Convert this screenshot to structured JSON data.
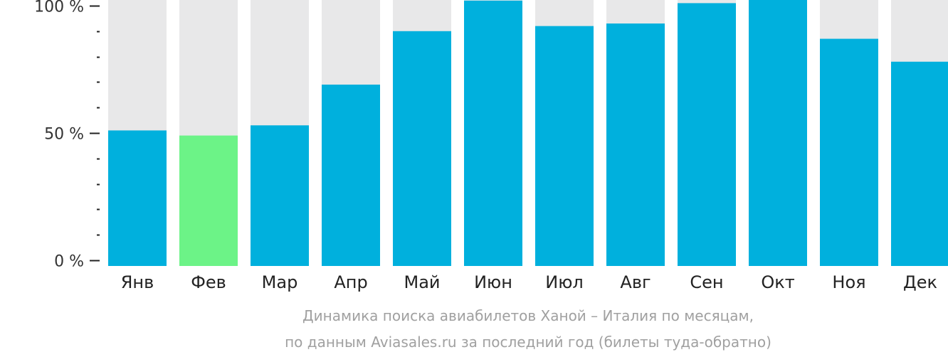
{
  "chart_data": {
    "type": "bar",
    "categories": [
      "Янв",
      "Фев",
      "Мар",
      "Апр",
      "Май",
      "Июн",
      "Июл",
      "Авг",
      "Сен",
      "Окт",
      "Ноя",
      "Дек"
    ],
    "values": [
      51,
      49,
      53,
      69,
      90,
      102,
      92,
      93,
      101,
      105,
      87,
      78
    ],
    "highlight_index": 1,
    "ylim": [
      0,
      100
    ],
    "yticks": [
      {
        "value": 0,
        "label": "0 %"
      },
      {
        "value": 50,
        "label": "50 %"
      },
      {
        "value": 100,
        "label": "100 %"
      }
    ],
    "minor_tick_step": 10,
    "caption_line1": "Динамика поиска авиабилетов Ханой – Италия по месяцам,",
    "caption_line2": "по данным Aviasales.ru за последний год (билеты туда-обратно)",
    "colors": {
      "bar": "#00b0dd",
      "highlight": "#6cf387",
      "background_bar": "#e8e8e9",
      "axis": "#222222"
    }
  }
}
